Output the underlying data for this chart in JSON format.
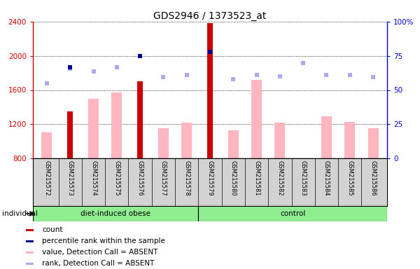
{
  "title": "GDS2946 / 1373523_at",
  "samples": [
    "GSM215572",
    "GSM215573",
    "GSM215574",
    "GSM215575",
    "GSM215576",
    "GSM215577",
    "GSM215578",
    "GSM215579",
    "GSM215580",
    "GSM215581",
    "GSM215582",
    "GSM215583",
    "GSM215584",
    "GSM215585",
    "GSM215586"
  ],
  "count_values": [
    null,
    1350,
    null,
    null,
    1700,
    null,
    null,
    2380,
    null,
    null,
    null,
    null,
    null,
    null,
    null
  ],
  "percentile_values": [
    null,
    1870,
    null,
    null,
    2000,
    null,
    null,
    2050,
    null,
    null,
    null,
    null,
    null,
    null,
    null
  ],
  "value_absent": [
    1100,
    null,
    1500,
    1570,
    null,
    1150,
    1220,
    null,
    1130,
    1720,
    1220,
    null,
    1290,
    1230,
    1150
  ],
  "rank_absent": [
    1680,
    1850,
    1820,
    1870,
    null,
    1750,
    1780,
    null,
    1730,
    1780,
    1760,
    1920,
    1780,
    1780,
    1750
  ],
  "group1_label": "diet-induced obese",
  "group1_count": 7,
  "group2_label": "control",
  "group2_count": 8,
  "ylim_left": [
    800,
    2400
  ],
  "ylim_right": [
    0,
    100
  ],
  "yticks_left": [
    800,
    1200,
    1600,
    2000,
    2400
  ],
  "yticks_right": [
    0,
    25,
    50,
    75,
    100
  ],
  "bar_color_count": "#cc0000",
  "bar_color_absent": "#ffb6c1",
  "dot_color_percentile": "#00008b",
  "dot_color_rank_absent": "#aaaaee",
  "plot_bg": "#ffffff",
  "tick_area_bg": "#d3d3d3",
  "group_bg": "#90EE90",
  "left_axis_color": "#cc0000",
  "right_axis_color": "#0000cc",
  "legend_items": [
    {
      "color": "#cc0000",
      "label": "count"
    },
    {
      "color": "#00008b",
      "label": "percentile rank within the sample"
    },
    {
      "color": "#ffb6c1",
      "label": "value, Detection Call = ABSENT"
    },
    {
      "color": "#aaaaee",
      "label": "rank, Detection Call = ABSENT"
    }
  ]
}
